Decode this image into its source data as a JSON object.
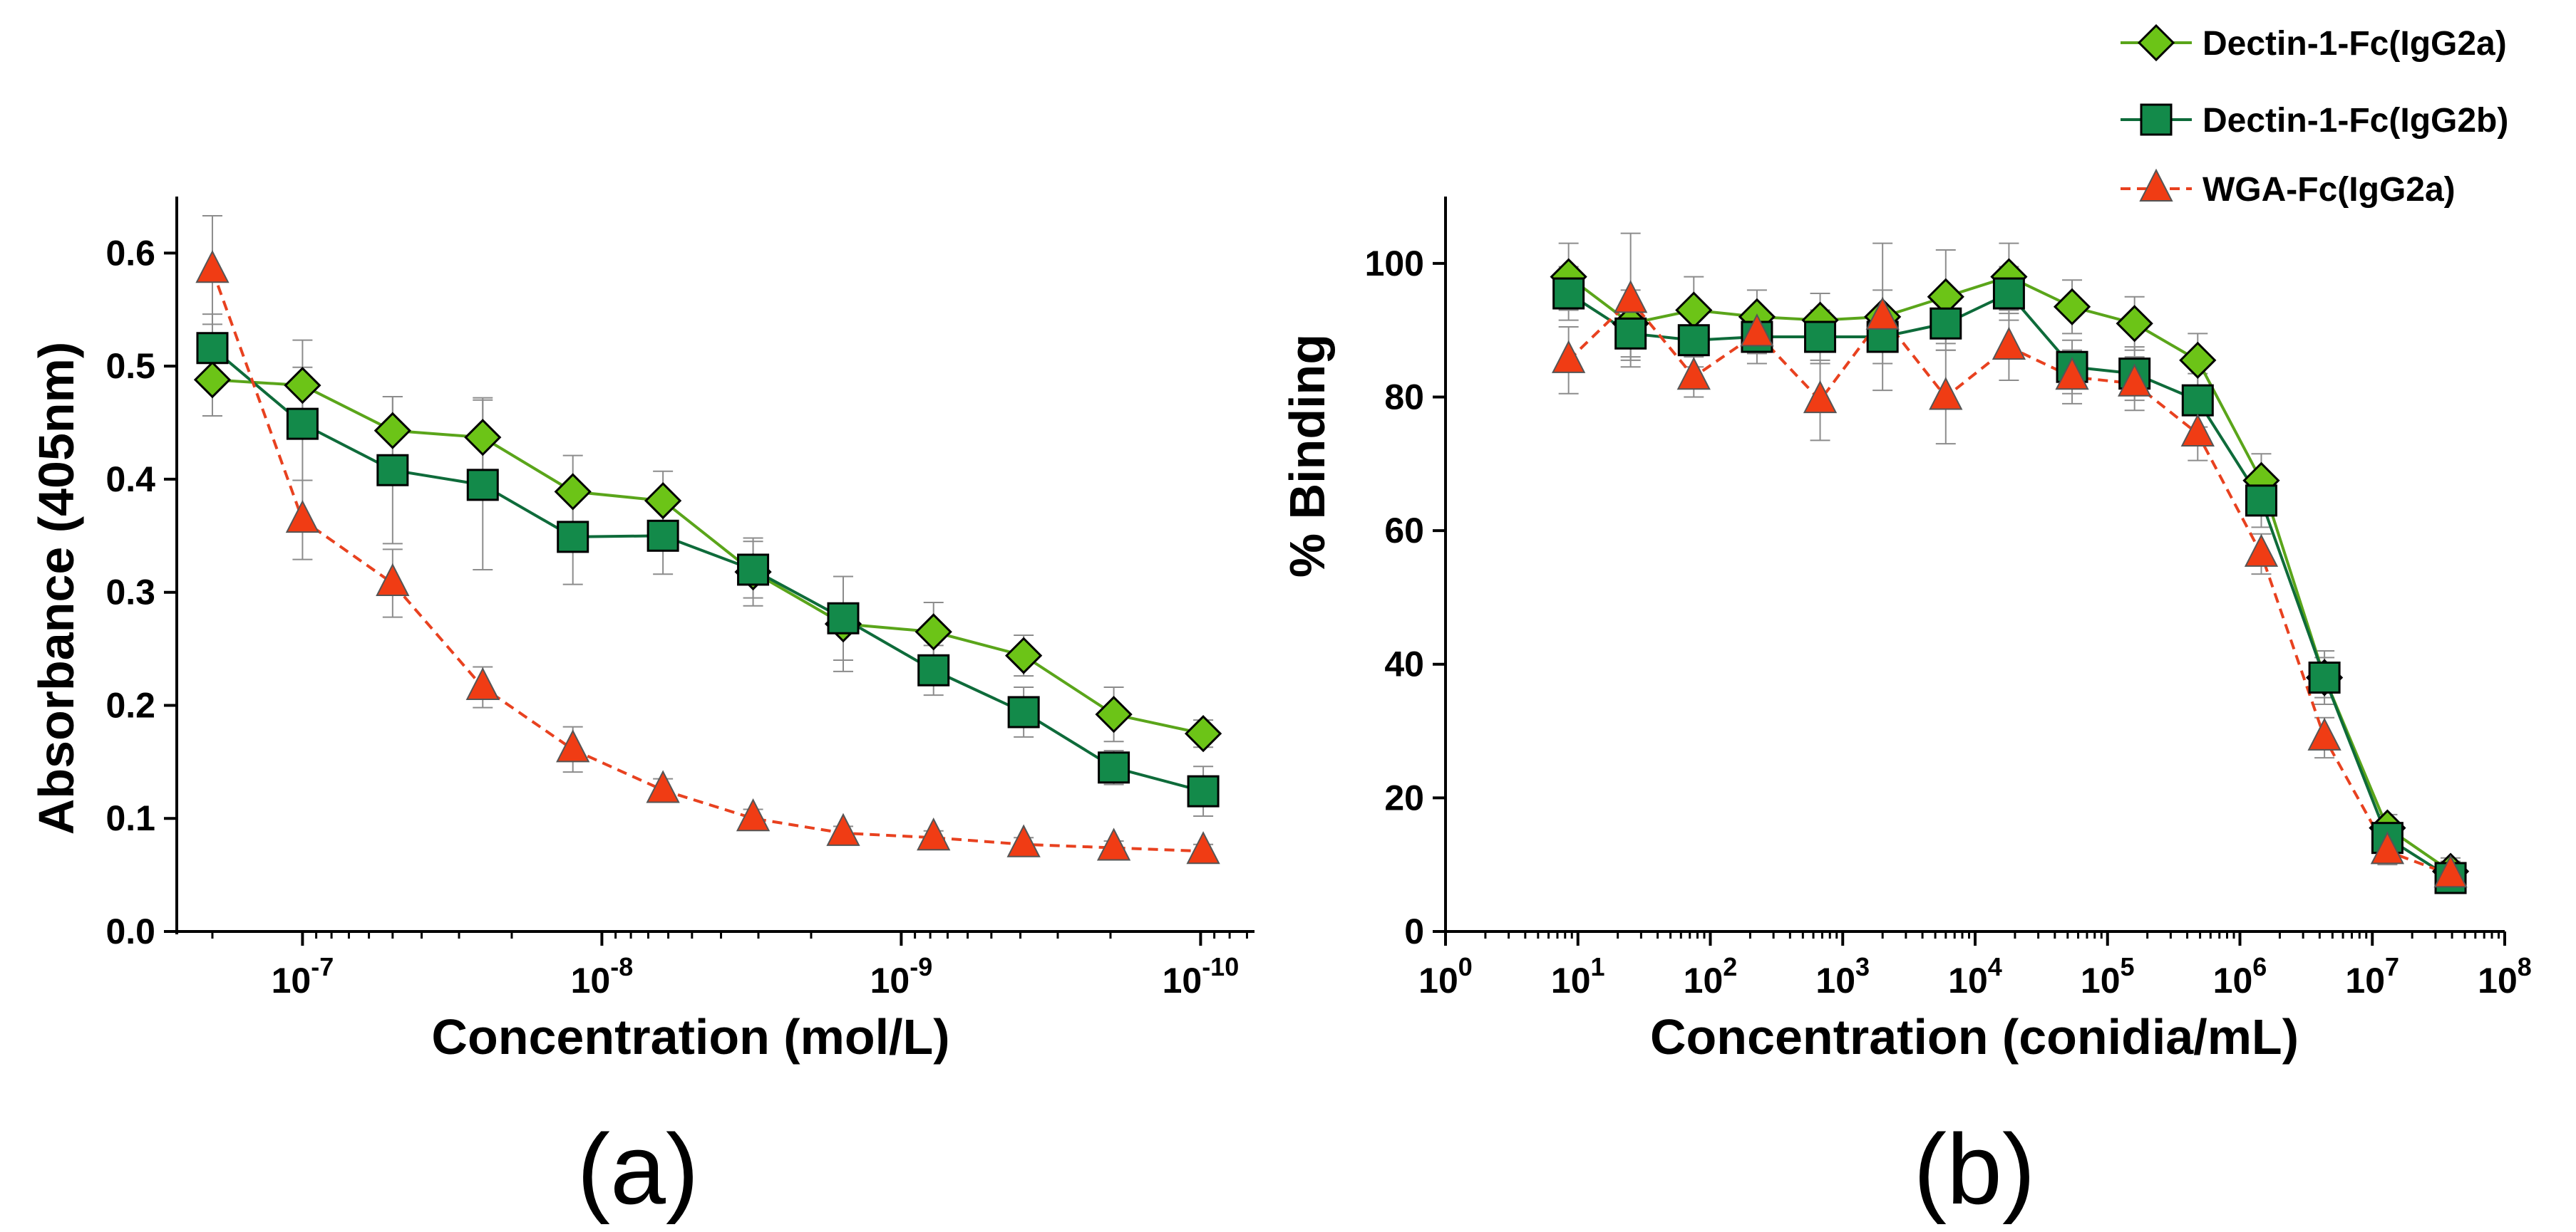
{
  "colors": {
    "dectin_2a": "#6cc417",
    "dectin_2a_line": "#5aa51a",
    "dectin_2b": "#138a4a",
    "dectin_2b_line": "#0e6b3a",
    "wga": "#f03c14",
    "wga_line": "#e8411f",
    "error_bar": "#8c8c8c",
    "axis": "#000000"
  },
  "legend": [
    {
      "label": "Dectin-1-Fc(IgG2a)",
      "marker": "diamond",
      "color": "#6cc417",
      "line_style": "solid"
    },
    {
      "label": "Dectin-1-Fc(IgG2b)",
      "marker": "square",
      "color": "#138a4a",
      "line_style": "solid"
    },
    {
      "label": "WGA-Fc(IgG2a)",
      "marker": "triangle",
      "color": "#f03c14",
      "line_style": "dashed"
    }
  ],
  "chart_data": [
    {
      "panel": "(a)",
      "type": "line",
      "xlabel": "Concentration (mol/L)",
      "ylabel": "Absorbance (405nm)",
      "x_scale": "log-reversed",
      "xlim_log10": [
        -6.58,
        -10.18
      ],
      "ylim": [
        0,
        0.65
      ],
      "yticks": [
        0.0,
        0.1,
        0.2,
        0.3,
        0.4,
        0.5,
        0.6
      ],
      "ytick_labels": [
        "0.0",
        "0.1",
        "0.2",
        "0.3",
        "0.4",
        "0.5",
        "0.6"
      ],
      "xticks_log10": [
        -7,
        -8,
        -9,
        -10
      ],
      "xtick_labels": [
        {
          "base": "10",
          "exp": "-7"
        },
        {
          "base": "10",
          "exp": "-8"
        },
        {
          "base": "10",
          "exp": "-9"
        },
        {
          "base": "10",
          "exp": "-10"
        }
      ],
      "x": [
        2e-07,
        1e-07,
        5e-08,
        2.5e-08,
        1.25e-08,
        6.25e-09,
        3.125e-09,
        1.5625e-09,
        7.8e-10,
        3.9e-10,
        1.95e-10,
        9.8e-11
      ],
      "series": [
        {
          "name": "Dectin-1-Fc(IgG2a)",
          "values": [
            0.488,
            0.483,
            0.443,
            0.437,
            0.389,
            0.381,
            0.318,
            0.272,
            0.265,
            0.244,
            0.192,
            0.175
          ],
          "errors": [
            0.032,
            0.04,
            0.03,
            0.035,
            0.032,
            0.026,
            0.03,
            0.042,
            0.026,
            0.018,
            0.024,
            0.012
          ]
        },
        {
          "name": "Dectin-1-Fc(IgG2b)",
          "values": [
            0.516,
            0.449,
            0.408,
            0.395,
            0.349,
            0.35,
            0.32,
            0.277,
            0.231,
            0.194,
            0.145,
            0.124
          ],
          "errors": [
            0.03,
            0.05,
            0.065,
            0.075,
            0.042,
            0.034,
            0.025,
            0.037,
            0.022,
            0.022,
            0.015,
            0.022
          ]
        },
        {
          "name": "WGA-Fc(IgG2a)",
          "values": [
            0.585,
            0.364,
            0.308,
            0.216,
            0.161,
            0.125,
            0.1,
            0.087,
            0.083,
            0.077,
            0.074,
            0.071
          ],
          "errors": [
            0.048,
            0.035,
            0.03,
            0.018,
            0.02,
            0.01,
            0.008,
            0.006,
            0.006,
            0.006,
            0.006,
            0.006
          ]
        }
      ]
    },
    {
      "panel": "(b)",
      "type": "line",
      "xlabel": "Concentration (conidia/mL)",
      "ylabel": "% Binding",
      "x_scale": "log",
      "xlim_log10": [
        0,
        8
      ],
      "ylim": [
        0,
        110
      ],
      "yticks": [
        0,
        20,
        40,
        60,
        80,
        100
      ],
      "ytick_labels": [
        "0",
        "20",
        "40",
        "60",
        "80",
        "100"
      ],
      "xticks_log10": [
        0,
        1,
        2,
        3,
        4,
        5,
        6,
        7,
        8
      ],
      "xtick_labels": [
        {
          "base": "10",
          "exp": "0"
        },
        {
          "base": "10",
          "exp": "1"
        },
        {
          "base": "10",
          "exp": "2"
        },
        {
          "base": "10",
          "exp": "3"
        },
        {
          "base": "10",
          "exp": "4"
        },
        {
          "base": "10",
          "exp": "5"
        },
        {
          "base": "10",
          "exp": "6"
        },
        {
          "base": "10",
          "exp": "7"
        },
        {
          "base": "10",
          "exp": "8"
        }
      ],
      "x": [
        8.5,
        25,
        75,
        225,
        675,
        2000,
        6000,
        18000,
        54000,
        160000,
        480000,
        1450000,
        4350000,
        13000000,
        39000000
      ],
      "series": [
        {
          "name": "Dectin-1-Fc(IgG2a)",
          "values": [
            98,
            91,
            93,
            92,
            91.5,
            92,
            95,
            98,
            93.5,
            91,
            85.5,
            67.5,
            38,
            15.5,
            9
          ],
          "errors": [
            5,
            5,
            5,
            4,
            4,
            4,
            7,
            5,
            4,
            4,
            4,
            4,
            4,
            2,
            2
          ]
        },
        {
          "name": "Dectin-1-Fc(IgG2b)",
          "values": [
            95.5,
            89.5,
            88.5,
            89,
            89,
            89,
            91,
            95.5,
            84.5,
            83.5,
            79.5,
            64.5,
            38,
            14,
            8
          ],
          "errors": [
            4,
            4,
            4,
            4,
            4,
            4,
            4,
            4,
            4,
            4,
            4,
            4,
            3,
            2,
            2
          ]
        },
        {
          "name": "WGA-Fc(IgG2a)",
          "values": [
            85.5,
            94.5,
            83,
            89.5,
            79.5,
            92,
            80,
            87.5,
            83,
            82,
            74.5,
            56.5,
            29,
            12,
            8.5
          ],
          "errors": [
            5,
            10,
            3,
            3,
            6,
            11,
            7,
            5,
            4,
            4,
            4,
            3,
            3,
            2,
            2
          ]
        }
      ]
    }
  ]
}
